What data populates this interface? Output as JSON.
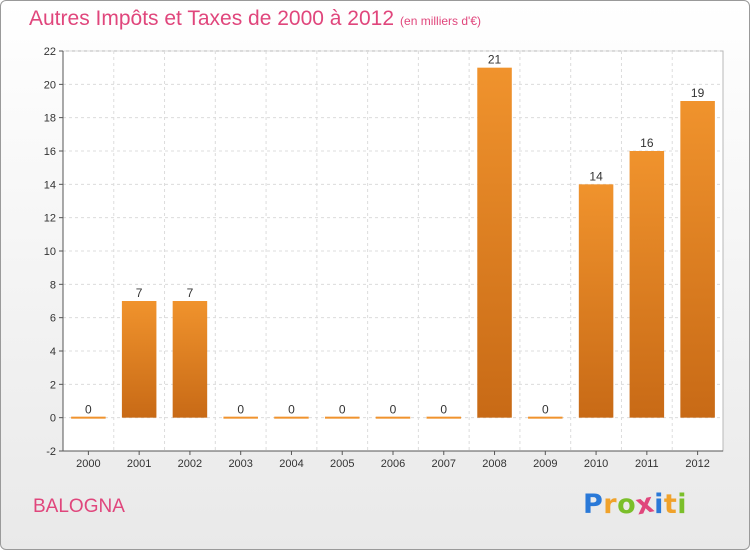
{
  "header": {
    "title": "Autres Impôts et Taxes de 2000 à 2012",
    "subtitle": "(en milliers d'€)"
  },
  "footer": {
    "commune": "BALOGNA",
    "logo_letters": [
      "P",
      "r",
      "o",
      "x",
      "i",
      "t",
      "i"
    ],
    "logo_colors": [
      "#2a79d8",
      "#f0a22b",
      "#7bbf2a",
      "#e0467c",
      "#2a79d8",
      "#f0a22b",
      "#7bbf2a"
    ]
  },
  "chart_data": {
    "type": "bar",
    "categories": [
      "2000",
      "2001",
      "2002",
      "2003",
      "2004",
      "2005",
      "2006",
      "2007",
      "2008",
      "2009",
      "2010",
      "2011",
      "2012"
    ],
    "values": [
      0,
      7,
      7,
      0,
      0,
      0,
      0,
      0,
      21,
      0,
      14,
      16,
      19
    ],
    "data_labels": [
      "0",
      "7",
      "7",
      "0",
      "0",
      "0",
      "0",
      "0",
      "21",
      "0",
      "14",
      "16",
      "19"
    ],
    "yticks": [
      -2,
      0,
      2,
      4,
      6,
      8,
      10,
      12,
      14,
      16,
      18,
      20,
      22
    ],
    "ylim": [
      -2,
      22
    ],
    "grid": true,
    "bar_color": "#f0932d",
    "bar_color_dark": "#c86a16"
  }
}
